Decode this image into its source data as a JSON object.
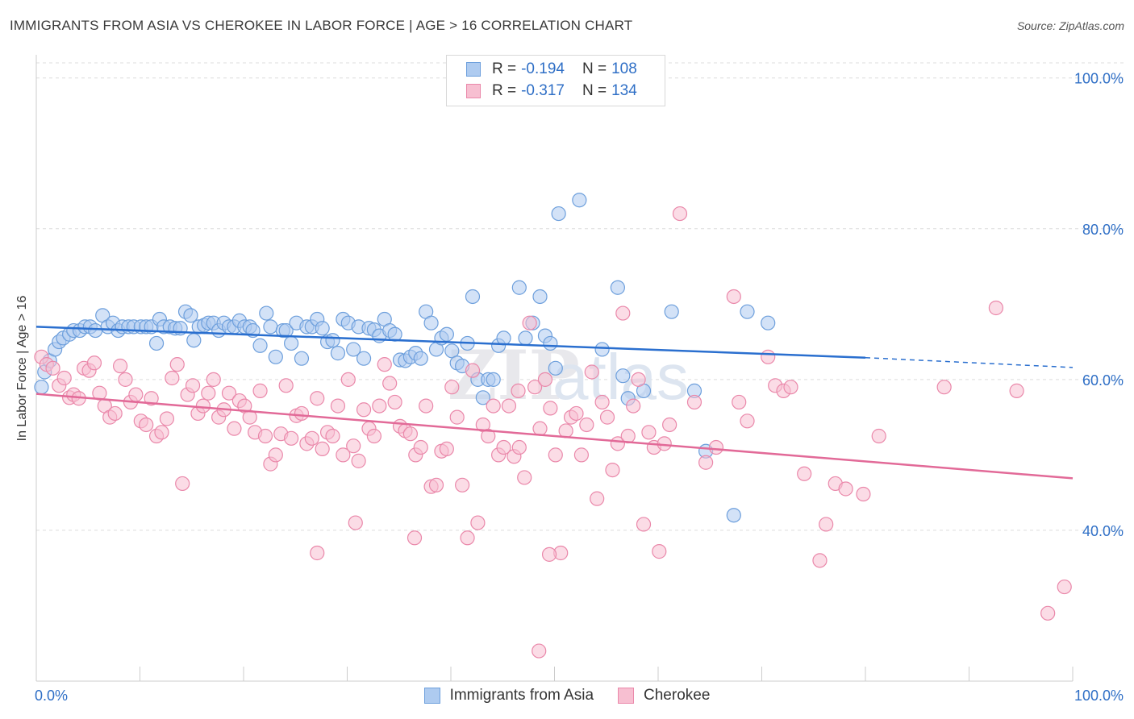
{
  "title": "IMMIGRANTS FROM ASIA VS CHEROKEE IN LABOR FORCE | AGE > 16 CORRELATION CHART",
  "source": "Source: ZipAtlas.com",
  "watermark": "ZIPatlas",
  "legend": {
    "r_label": "R =",
    "n_label": "N =",
    "rows": [
      {
        "r": "-0.194",
        "n": "108"
      },
      {
        "r": "-0.317",
        "n": "134"
      }
    ]
  },
  "colors": {
    "blue_fill": "#aecbf0",
    "blue_stroke": "#6d9fdc",
    "blue_line": "#2a6fcf",
    "pink_fill": "#f7bfd1",
    "pink_stroke": "#ea88aa",
    "pink_line": "#e26a98",
    "axis_text": "#2f6fc6",
    "grid": "#dcdcdc"
  },
  "chart_data": {
    "type": "scatter",
    "title": "IMMIGRANTS FROM ASIA VS CHEROKEE IN LABOR FORCE | AGE > 16 CORRELATION CHART",
    "xlabel": "",
    "ylabel": "In Labor Force | Age > 16",
    "xlim": [
      0,
      100
    ],
    "ylim": [
      20,
      102
    ],
    "x_tick_labels": [
      "0.0%",
      "100.0%"
    ],
    "y_ticks": [
      40,
      60,
      80,
      100
    ],
    "y_tick_labels": [
      "40.0%",
      "60.0%",
      "80.0%",
      "100.0%"
    ],
    "grid": "horizontal dashed",
    "legend_position": "top-center",
    "series": [
      {
        "name": "Immigrants from Asia",
        "color": "#aecbf0",
        "trend": {
          "x0": 0,
          "y0": 67.0,
          "x1": 80,
          "y1": 62.9,
          "dashed_to": 100,
          "dashed_y": 61.6
        },
        "points": [
          [
            0.5,
            59
          ],
          [
            0.8,
            61
          ],
          [
            1.3,
            62.5
          ],
          [
            1.8,
            64
          ],
          [
            2.2,
            65
          ],
          [
            2.6,
            65.5
          ],
          [
            3.2,
            66
          ],
          [
            3.6,
            66.5
          ],
          [
            4.2,
            66.5
          ],
          [
            4.7,
            67
          ],
          [
            5.2,
            67
          ],
          [
            5.7,
            66.5
          ],
          [
            6.4,
            68.5
          ],
          [
            6.9,
            67
          ],
          [
            7.4,
            67.5
          ],
          [
            7.9,
            66.5
          ],
          [
            8.3,
            67
          ],
          [
            8.9,
            67
          ],
          [
            9.4,
            67
          ],
          [
            10.1,
            67
          ],
          [
            10.6,
            67
          ],
          [
            11.1,
            67
          ],
          [
            11.6,
            64.8
          ],
          [
            11.9,
            68
          ],
          [
            12.3,
            67
          ],
          [
            12.9,
            67
          ],
          [
            13.4,
            66.8
          ],
          [
            13.9,
            66.8
          ],
          [
            14.4,
            69
          ],
          [
            14.9,
            68.5
          ],
          [
            15.2,
            65.2
          ],
          [
            15.7,
            67
          ],
          [
            16.2,
            67.2
          ],
          [
            16.6,
            67.5
          ],
          [
            17.1,
            67.5
          ],
          [
            17.6,
            66.5
          ],
          [
            18.1,
            67.5
          ],
          [
            18.6,
            67
          ],
          [
            19.1,
            67
          ],
          [
            19.6,
            67.8
          ],
          [
            20.1,
            67
          ],
          [
            20.6,
            67
          ],
          [
            20.9,
            66.5
          ],
          [
            21.6,
            64.5
          ],
          [
            22.2,
            68.8
          ],
          [
            22.6,
            67
          ],
          [
            23.1,
            63
          ],
          [
            23.8,
            66.5
          ],
          [
            24.1,
            66.5
          ],
          [
            24.6,
            64.8
          ],
          [
            25.1,
            67.5
          ],
          [
            25.6,
            62.8
          ],
          [
            26.1,
            67
          ],
          [
            26.6,
            67
          ],
          [
            27.1,
            68
          ],
          [
            27.6,
            66.8
          ],
          [
            28.1,
            65
          ],
          [
            28.6,
            65.2
          ],
          [
            29.1,
            63.5
          ],
          [
            29.6,
            68
          ],
          [
            30.1,
            67.5
          ],
          [
            30.6,
            64
          ],
          [
            31.1,
            67
          ],
          [
            31.6,
            62.8
          ],
          [
            32.1,
            66.8
          ],
          [
            32.6,
            66.6
          ],
          [
            33.1,
            65.8
          ],
          [
            33.6,
            68
          ],
          [
            34.1,
            66.5
          ],
          [
            34.6,
            66
          ],
          [
            35.1,
            62.6
          ],
          [
            35.6,
            62.5
          ],
          [
            36.1,
            63
          ],
          [
            36.6,
            63.5
          ],
          [
            37.1,
            62.8
          ],
          [
            37.6,
            69
          ],
          [
            38.1,
            67.5
          ],
          [
            38.6,
            64
          ],
          [
            39.1,
            65.5
          ],
          [
            39.6,
            66
          ],
          [
            40.1,
            63.8
          ],
          [
            40.6,
            62.2
          ],
          [
            41.1,
            61.8
          ],
          [
            41.6,
            64.8
          ],
          [
            42.1,
            71
          ],
          [
            42.6,
            60
          ],
          [
            43.1,
            57.6
          ],
          [
            43.6,
            60
          ],
          [
            44.1,
            60
          ],
          [
            44.6,
            64.5
          ],
          [
            45.1,
            65.5
          ],
          [
            46.6,
            72.2
          ],
          [
            47.2,
            65.5
          ],
          [
            47.9,
            67.5
          ],
          [
            48.6,
            71
          ],
          [
            49.1,
            65.8
          ],
          [
            49.6,
            64.8
          ],
          [
            50.1,
            61.5
          ],
          [
            50.4,
            82
          ],
          [
            52.4,
            83.8
          ],
          [
            54.6,
            64
          ],
          [
            56.1,
            72.2
          ],
          [
            56.6,
            60.5
          ],
          [
            57.1,
            57.5
          ],
          [
            58.6,
            58.5
          ],
          [
            61.3,
            69
          ],
          [
            63.5,
            58.5
          ],
          [
            64.6,
            50.5
          ],
          [
            67.3,
            42
          ],
          [
            68.6,
            69
          ],
          [
            70.6,
            67.5
          ]
        ]
      },
      {
        "name": "Cherokee",
        "color": "#f7bfd1",
        "trend": {
          "x0": 0,
          "y0": 58.1,
          "x1": 100,
          "y1": 46.9
        },
        "points": [
          [
            0.5,
            63
          ],
          [
            1,
            62
          ],
          [
            1.6,
            61.5
          ],
          [
            2.2,
            59.2
          ],
          [
            2.7,
            60.2
          ],
          [
            3.2,
            57.6
          ],
          [
            3.6,
            58
          ],
          [
            4.1,
            57.5
          ],
          [
            4.6,
            61.5
          ],
          [
            5.1,
            61.2
          ],
          [
            5.6,
            62.2
          ],
          [
            6.1,
            58.2
          ],
          [
            6.6,
            56.5
          ],
          [
            7.1,
            55
          ],
          [
            7.6,
            55.5
          ],
          [
            8.1,
            61.8
          ],
          [
            8.6,
            60
          ],
          [
            9.1,
            57
          ],
          [
            9.6,
            58
          ],
          [
            10.1,
            54.5
          ],
          [
            10.6,
            54
          ],
          [
            11.1,
            57.5
          ],
          [
            11.6,
            52.5
          ],
          [
            12.1,
            53
          ],
          [
            12.6,
            54.8
          ],
          [
            13.1,
            60.2
          ],
          [
            13.6,
            62
          ],
          [
            14.1,
            46.2
          ],
          [
            14.6,
            58
          ],
          [
            15.1,
            59.2
          ],
          [
            15.6,
            55.5
          ],
          [
            16.1,
            56.5
          ],
          [
            16.6,
            58.2
          ],
          [
            17.1,
            60
          ],
          [
            17.6,
            55
          ],
          [
            18.1,
            56
          ],
          [
            18.6,
            58.2
          ],
          [
            19.1,
            53.5
          ],
          [
            19.6,
            57.2
          ],
          [
            20.1,
            56.5
          ],
          [
            20.6,
            55
          ],
          [
            21.1,
            53
          ],
          [
            21.6,
            58.5
          ],
          [
            22.1,
            52.5
          ],
          [
            22.6,
            48.8
          ],
          [
            23.1,
            50
          ],
          [
            23.6,
            52.8
          ],
          [
            24.1,
            59.2
          ],
          [
            24.6,
            52.2
          ],
          [
            25.1,
            55.2
          ],
          [
            25.6,
            55.5
          ],
          [
            26.1,
            51.5
          ],
          [
            26.6,
            52.2
          ],
          [
            27.1,
            57.5
          ],
          [
            27.6,
            50.8
          ],
          [
            28.1,
            53
          ],
          [
            28.6,
            52.5
          ],
          [
            29.1,
            56.5
          ],
          [
            29.6,
            50
          ],
          [
            30.1,
            60
          ],
          [
            30.6,
            51.2
          ],
          [
            31.1,
            49.2
          ],
          [
            31.6,
            56
          ],
          [
            32.1,
            53.5
          ],
          [
            32.6,
            52.5
          ],
          [
            33.1,
            56.5
          ],
          [
            33.6,
            62
          ],
          [
            34.1,
            59.5
          ],
          [
            34.6,
            57
          ],
          [
            35.1,
            53.8
          ],
          [
            35.6,
            53.2
          ],
          [
            36.1,
            52.8
          ],
          [
            36.6,
            50
          ],
          [
            37.1,
            51
          ],
          [
            37.6,
            56.5
          ],
          [
            38.1,
            45.8
          ],
          [
            38.6,
            46
          ],
          [
            39.1,
            50.5
          ],
          [
            39.6,
            50.8
          ],
          [
            40.1,
            59
          ],
          [
            40.6,
            55
          ],
          [
            41.1,
            46
          ],
          [
            41.6,
            39
          ],
          [
            42.1,
            61.2
          ],
          [
            42.6,
            41
          ],
          [
            43.1,
            54
          ],
          [
            43.6,
            52.5
          ],
          [
            44.1,
            56.5
          ],
          [
            44.6,
            50
          ],
          [
            45.1,
            51
          ],
          [
            45.6,
            56.5
          ],
          [
            46.1,
            49.8
          ],
          [
            46.6,
            51
          ],
          [
            47.1,
            47
          ],
          [
            47.6,
            67.5
          ],
          [
            48.1,
            59
          ],
          [
            48.6,
            53.5
          ],
          [
            49.1,
            60
          ],
          [
            49.6,
            56.2
          ],
          [
            50.1,
            50
          ],
          [
            50.6,
            37
          ],
          [
            51.1,
            53.2
          ],
          [
            51.6,
            55
          ],
          [
            52.1,
            55.5
          ],
          [
            52.6,
            50
          ],
          [
            53.1,
            54
          ],
          [
            53.6,
            61
          ],
          [
            54.1,
            44.2
          ],
          [
            54.6,
            57
          ],
          [
            55.1,
            55
          ],
          [
            55.6,
            48
          ],
          [
            56.1,
            51.5
          ],
          [
            56.6,
            68.8
          ],
          [
            57.1,
            52.5
          ],
          [
            57.6,
            56.5
          ],
          [
            58.1,
            60
          ],
          [
            58.6,
            40.8
          ],
          [
            59.1,
            53
          ],
          [
            59.6,
            51
          ],
          [
            60.1,
            37.2
          ],
          [
            60.6,
            51.5
          ],
          [
            61.1,
            54
          ],
          [
            62.1,
            82
          ],
          [
            63.5,
            57
          ],
          [
            64.6,
            49
          ],
          [
            65.6,
            51
          ],
          [
            67.3,
            71
          ],
          [
            67.8,
            57
          ],
          [
            68.6,
            54.5
          ],
          [
            70.6,
            63
          ],
          [
            71.3,
            59.2
          ],
          [
            72.1,
            58.5
          ],
          [
            72.8,
            59
          ],
          [
            74.1,
            47.5
          ],
          [
            75.6,
            36
          ],
          [
            76.2,
            40.8
          ],
          [
            77.1,
            46.2
          ],
          [
            78.1,
            45.5
          ],
          [
            79.8,
            44.8
          ],
          [
            81.3,
            52.5
          ],
          [
            87.6,
            59
          ],
          [
            92.6,
            69.5
          ],
          [
            94.6,
            58.5
          ],
          [
            97.6,
            29
          ],
          [
            99.2,
            32.5
          ],
          [
            46.5,
            58.5
          ],
          [
            49.5,
            36.8
          ],
          [
            48.5,
            24
          ],
          [
            36.5,
            39
          ],
          [
            27.1,
            37
          ],
          [
            30.8,
            41
          ]
        ]
      }
    ]
  },
  "bottom_legend": [
    {
      "label": "Immigrants from Asia"
    },
    {
      "label": "Cherokee"
    }
  ]
}
